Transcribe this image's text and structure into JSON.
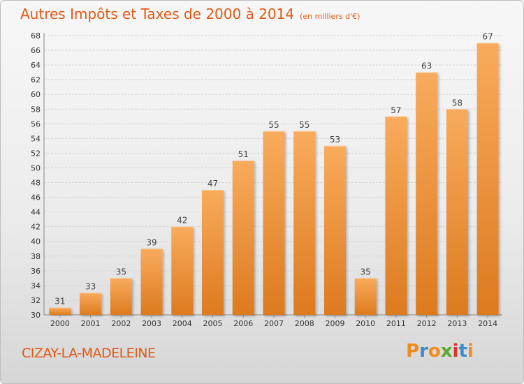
{
  "header": {
    "title": "Autres Impôts et Taxes de 2000 à 2014",
    "unit": "(en milliers d'€)"
  },
  "footer": {
    "commune": "CIZAY-LA-MADELEINE",
    "logo_letters": [
      "P",
      "r",
      "o",
      "x",
      "i",
      "t",
      "i"
    ],
    "logo_colors": [
      "#f08c1e",
      "#3c8dcc",
      "#f08c1e",
      "#5aa832",
      "#e0322a",
      "#3c8dcc",
      "#f08c1e"
    ]
  },
  "colors": {
    "title": "#e05a16",
    "bar_light": "#f8a858",
    "bar_dark": "#e07c20"
  },
  "chart_data": {
    "type": "bar",
    "categories": [
      "2000",
      "2001",
      "2002",
      "2003",
      "2004",
      "2005",
      "2006",
      "2007",
      "2008",
      "2009",
      "2010",
      "2011",
      "2012",
      "2013",
      "2014"
    ],
    "values": [
      31,
      33,
      35,
      39,
      42,
      47,
      51,
      55,
      55,
      53,
      35,
      57,
      63,
      58,
      67
    ],
    "ylim": [
      30,
      68
    ],
    "ytick_step": 2,
    "grid": true
  }
}
